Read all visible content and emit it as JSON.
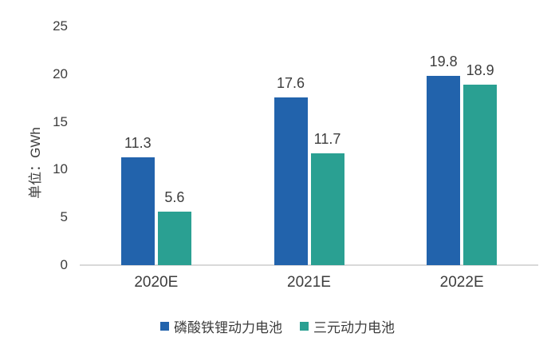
{
  "chart_data": {
    "type": "bar",
    "categories": [
      "2020E",
      "2021E",
      "2022E"
    ],
    "series": [
      {
        "name": "磷酸铁锂动力电池",
        "color": "#2263AC",
        "values": [
          11.3,
          17.6,
          19.8
        ]
      },
      {
        "name": "三元动力电池",
        "color": "#2AA092",
        "values": [
          5.6,
          11.7,
          18.9
        ]
      }
    ],
    "ylabel": "单位：GWh",
    "yticks": [
      0,
      5,
      10,
      15,
      20,
      25
    ],
    "ylim": [
      0,
      25
    ],
    "grid": false,
    "legend_position": "bottom",
    "value_labels": true,
    "axis_line_color": "#D9D9D9",
    "text_color": "#3D3D3D"
  }
}
